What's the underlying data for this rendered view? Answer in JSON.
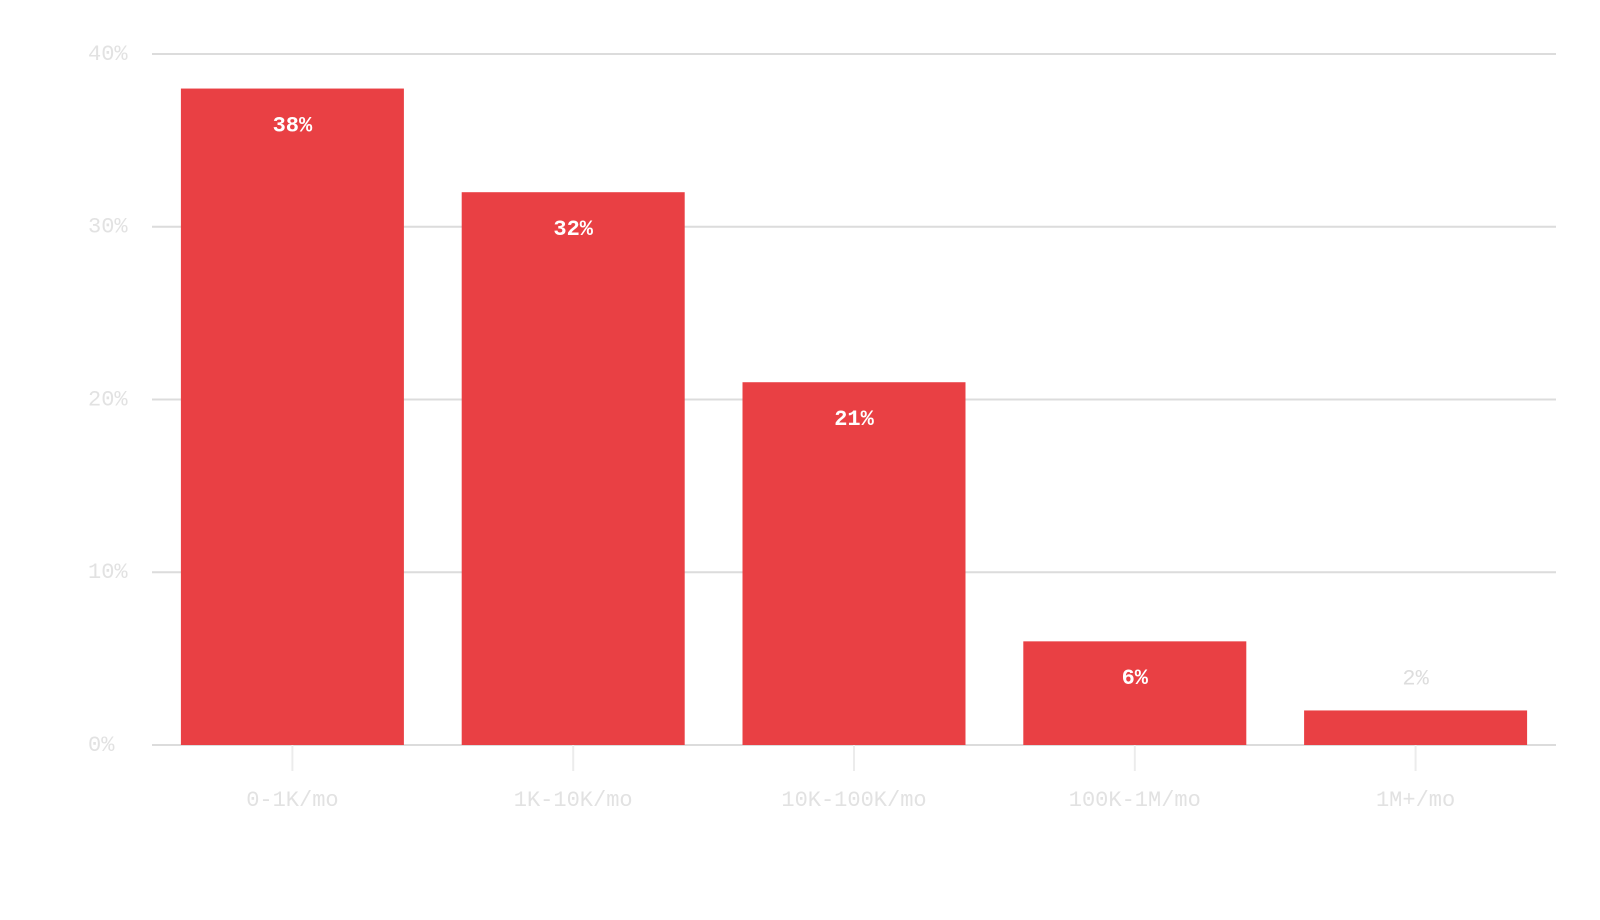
{
  "chart_data": {
    "type": "bar",
    "categories": [
      "0-1K/mo",
      "1K-10K/mo",
      "10K-100K/mo",
      "100K-1M/mo",
      "1M+/mo"
    ],
    "values": [
      38,
      32,
      21,
      6,
      2
    ],
    "value_labels": [
      "38%",
      "32%",
      "21%",
      "6%",
      "2%"
    ],
    "color": "#e94044",
    "ylim": [
      0,
      40
    ],
    "yticks": [
      {
        "value": 0,
        "label": "0%"
      },
      {
        "value": 10,
        "label": "10%"
      },
      {
        "value": 20,
        "label": "20%"
      },
      {
        "value": 30,
        "label": "30%"
      },
      {
        "value": 40,
        "label": "40%"
      }
    ],
    "grid": true
  }
}
